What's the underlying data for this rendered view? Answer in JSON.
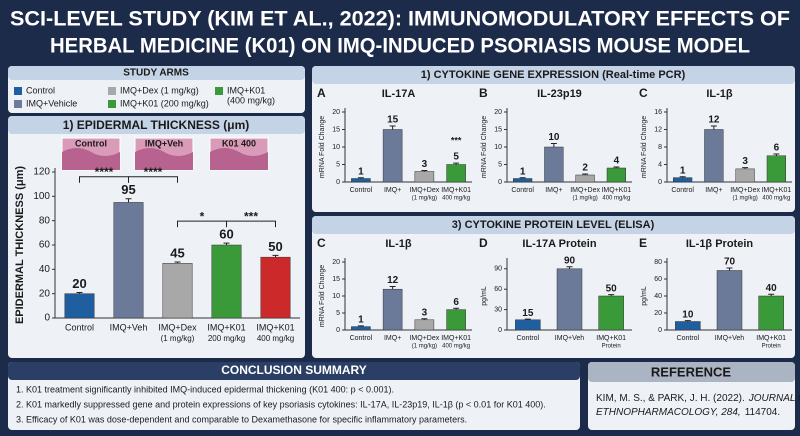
{
  "header": {
    "title_lines": [
      "SCI-LEVEL STUDY (KIM ET AL., 2022): IMMUNOMODULATORY EFFECTS OF",
      "HERBAL MEDICINE (K01) ON IMQ-INDUCED PSORIASIS MOUSE MODEL"
    ]
  },
  "study_arms": {
    "title": "STUDY ARMS",
    "items": [
      {
        "label": [
          "Control"
        ],
        "color": "#1f5fa0"
      },
      {
        "label": [
          "IMQ+Vehicle"
        ],
        "color": "#6b7a99"
      },
      {
        "label": [
          "IMQ+Dex (1 mg/kg)"
        ],
        "color": "#a8a8a8"
      },
      {
        "label": [
          "IMQ+K01 (200 mg/kg)"
        ],
        "color": "#3a9a3a"
      },
      {
        "label": [
          "IMQ+K01",
          "(400 mg/kg)"
        ],
        "color": "#3a9a3a"
      }
    ]
  },
  "histology": [
    "Control",
    "IMQ+Veh",
    "K01 400"
  ],
  "sections": [
    "1) CYTOKINE GENE EXPRESSION (Real-time PCR)",
    "3) CYTOKINE PROTEIN LEVEL (ELISA)"
  ],
  "chart_data": [
    {
      "type": "bar",
      "title": "1)  EPIDERMAL THICKNESS (μm)",
      "ylabel": "EPIDERMAL THICKNESS (μm)",
      "categories": [
        "Control",
        "IMQ+Veh",
        "IMQ+Dex",
        "IMQ+K01",
        "IMQ+K01"
      ],
      "category_notes": [
        null,
        null,
        "(1 mg/kg)",
        "200 mg/kg",
        "400 mg/kg"
      ],
      "values": [
        20,
        95,
        45,
        60,
        50
      ],
      "errors": [
        1,
        3,
        1,
        1.5,
        1.5
      ],
      "colors": [
        "#1f5fa0",
        "#6b7a99",
        "#a8a8a8",
        "#3a9a3a",
        "#cc2a2a"
      ],
      "ylim": [
        0,
        120
      ],
      "yticks": [
        0,
        20,
        40,
        60,
        80,
        100,
        120
      ],
      "annotations": [
        {
          "text": "****",
          "between": [
            0,
            1
          ]
        },
        {
          "text": "****",
          "between": [
            1,
            2
          ]
        },
        {
          "text": "*",
          "between": [
            2,
            3
          ]
        },
        {
          "text": "***",
          "between": [
            3,
            4
          ]
        }
      ]
    },
    {
      "type": "bar",
      "panel": "A",
      "title": "IL-17A",
      "ylabel": "mRNA Fold Change",
      "categories": [
        "Control",
        "IMQ+",
        "IMQ+Dex",
        "IMQ+K01"
      ],
      "category_notes": [
        null,
        null,
        "(1 mg/kg)",
        "400 mg/kg"
      ],
      "values": [
        1,
        15,
        3,
        5
      ],
      "errors": [
        0.2,
        1,
        0.3,
        0.4
      ],
      "colors": [
        "#1f5fa0",
        "#6b7a99",
        "#a8a8a8",
        "#3a9a3a"
      ],
      "ylim": [
        0,
        20
      ],
      "yticks": [
        0,
        5,
        10,
        15,
        20
      ],
      "annotations": [
        {
          "text": "***",
          "between": [
            3,
            3
          ]
        }
      ]
    },
    {
      "type": "bar",
      "panel": "B",
      "title": "IL-23p19",
      "ylabel": "mRNA Fold Change",
      "categories": [
        "Control",
        "IMQ+",
        "IMQ+Dex",
        "IMQ+K01"
      ],
      "category_notes": [
        null,
        null,
        "(1 mg/kg)",
        "400 mg/kg"
      ],
      "values": [
        1,
        10,
        2,
        4
      ],
      "errors": [
        0.2,
        1,
        0.3,
        0.3
      ],
      "colors": [
        "#1f5fa0",
        "#6b7a99",
        "#a8a8a8",
        "#3a9a3a"
      ],
      "ylim": [
        0,
        20
      ],
      "yticks": [
        0,
        5,
        10,
        15,
        20
      ]
    },
    {
      "type": "bar",
      "panel": "C",
      "title": "IL-1β",
      "ylabel": "mRNA Fold Change",
      "categories": [
        "Control",
        "IMQ+",
        "IMQ+Dex",
        "IMQ+K01"
      ],
      "category_notes": [
        null,
        null,
        "(1 mg/kg)",
        "400 mg/kg"
      ],
      "values": [
        1,
        12,
        3,
        6
      ],
      "errors": [
        0.2,
        0.8,
        0.3,
        0.4
      ],
      "colors": [
        "#1f5fa0",
        "#6b7a99",
        "#a8a8a8",
        "#3a9a3a"
      ],
      "ylim": [
        0,
        16
      ],
      "yticks": [
        0,
        4,
        8,
        12,
        16
      ]
    },
    {
      "type": "bar",
      "panel": "C",
      "title": "IL-1β",
      "ylabel": "mRNA Fold Change",
      "categories": [
        "Control",
        "IMQ+",
        "IMQ+Dex",
        "IMQ+K01"
      ],
      "category_notes": [
        null,
        null,
        "(1 mg/kg)",
        "400 mg/kg"
      ],
      "values": [
        1,
        12,
        3,
        6
      ],
      "errors": [
        0.2,
        0.8,
        0.3,
        0.4
      ],
      "colors": [
        "#1f5fa0",
        "#6b7a99",
        "#a8a8a8",
        "#3a9a3a"
      ],
      "ylim": [
        0,
        20
      ],
      "yticks": [
        0,
        5,
        10,
        15,
        20
      ]
    },
    {
      "type": "bar",
      "panel": "D",
      "title": "IL-17A Protein",
      "ylabel": "pg/mL",
      "categories": [
        "Control",
        "IMQ+Veh",
        "IMQ+K01"
      ],
      "category_notes": [
        null,
        null,
        "Protein"
      ],
      "values": [
        15,
        90,
        50
      ],
      "errors": [
        1,
        3,
        2
      ],
      "colors": [
        "#1f5fa0",
        "#6b7a99",
        "#3a9a3a"
      ],
      "ylim": [
        0,
        100
      ],
      "yticks": [
        0,
        30,
        60,
        90
      ]
    },
    {
      "type": "bar",
      "panel": "E",
      "title": "IL-1β Protein",
      "ylabel": "pg/mL",
      "categories": [
        "Control",
        "IMQ+Veh",
        "IMQ+K01"
      ],
      "category_notes": [
        null,
        null,
        "Protein"
      ],
      "values": [
        10,
        70,
        40
      ],
      "errors": [
        1,
        3,
        2
      ],
      "colors": [
        "#1f5fa0",
        "#6b7a99",
        "#3a9a3a"
      ],
      "ylim": [
        0,
        80
      ],
      "yticks": [
        0,
        20,
        40,
        60,
        80
      ]
    }
  ],
  "conclusion": {
    "title": "CONCLUSION SUMMARY",
    "items": [
      "1. K01 treatment significantly inhibited IMQ-induced epidermal thickening (K01 400: p < 0.001).",
      "2. K01 markedly suppressed gene and protein expressions of key psoriasis cytokines: IL-17A, IL-23p19, IL-1β (p < 0.01 for K01 400).",
      "3. Efficacy of K01 was dose-dependent and comparable to Dexamethasone for specific inflammatory parameters."
    ]
  },
  "reference": {
    "title": "REFERENCE",
    "lines": [
      [
        {
          "text": "KIM, M. S., & PARK, J. H. (2022).",
          "italic": false
        },
        {
          "text": "JOURNAL OF",
          "italic": true
        }
      ],
      [
        {
          "text": "ETHNOPHARMACOLOGY, 284,",
          "italic": true
        },
        {
          "text": "114704.",
          "italic": false
        }
      ]
    ]
  }
}
